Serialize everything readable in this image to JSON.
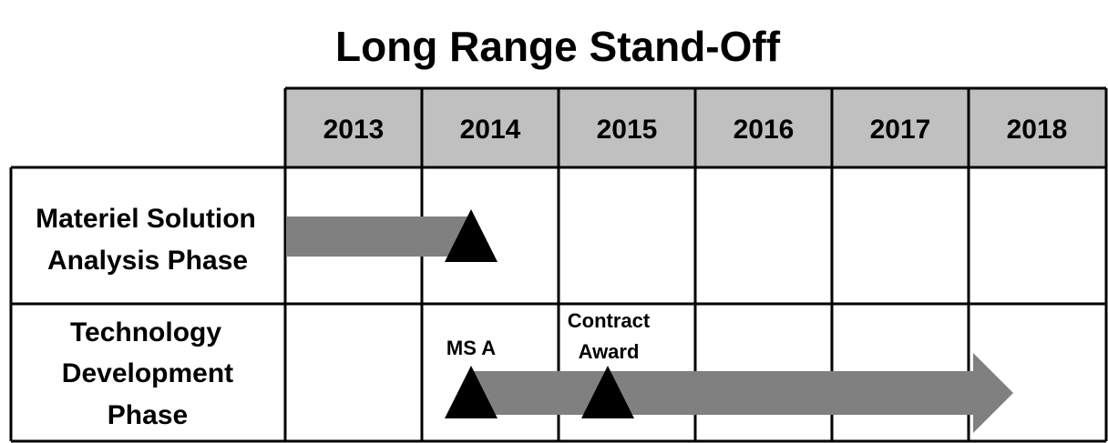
{
  "title": "Long Range Stand-Off",
  "years": [
    "2013",
    "2014",
    "2015",
    "2016",
    "2017",
    "2018"
  ],
  "phases": [
    {
      "label_lines": [
        "Materiel Solution",
        "Analysis Phase"
      ]
    },
    {
      "label_lines": [
        "Technology",
        "Development",
        "Phase"
      ]
    }
  ],
  "milestones": {
    "ms_a": "MS A",
    "contract_award_lines": [
      "Contract",
      "Award"
    ]
  },
  "colors": {
    "header_fill": "#c0c0c0",
    "bar_fill": "#808080",
    "milestone_fill": "#000000",
    "grid_line": "#000000"
  }
}
